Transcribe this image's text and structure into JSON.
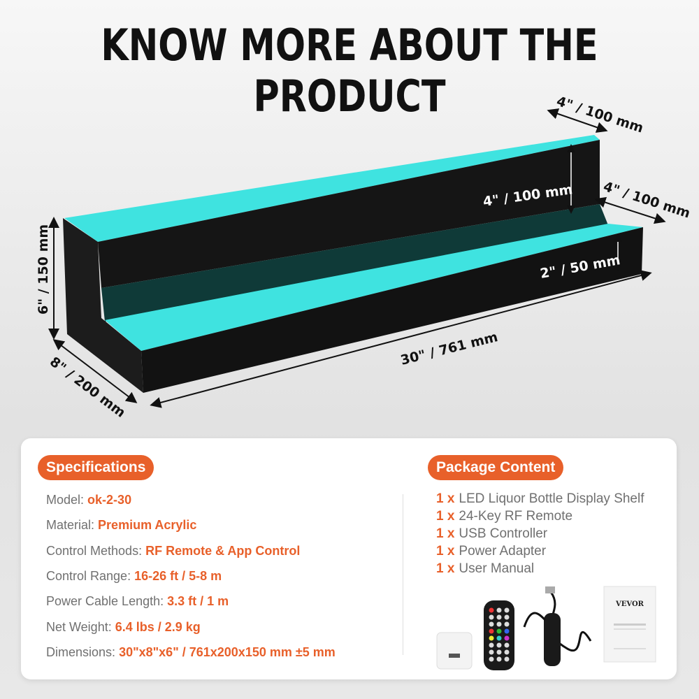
{
  "title": "KNOW MORE ABOUT THE PRODUCT",
  "dimensions": {
    "top_depth": "4\" / 100 mm",
    "lower_depth": "4\" / 100 mm",
    "step_height": "4\" / 100 mm",
    "front_height": "2\" / 50 mm",
    "height": "6\" / 150 mm",
    "depth": "8\" / 200 mm",
    "length": "30\" / 761 mm"
  },
  "colors": {
    "accent": "#e8602a",
    "led": "#3fe3e0",
    "body": "#111111"
  },
  "specifications": {
    "heading": "Specifications",
    "items": [
      {
        "label": "Model:",
        "value": "ok-2-30"
      },
      {
        "label": "Material:",
        "value": "Premium Acrylic"
      },
      {
        "label": "Control Methods:",
        "value": "RF Remote & App Control"
      },
      {
        "label": "Control Range:",
        "value": "16-26 ft / 5-8 m"
      },
      {
        "label": "Power Cable Length:",
        "value": "3.3 ft / 1 m"
      },
      {
        "label": "Net Weight:",
        "value": "6.4 lbs / 2.9 kg"
      },
      {
        "label": "Dimensions:",
        "value": "30\"x8\"x6\" / 761x200x150 mm ±5 mm"
      }
    ]
  },
  "package": {
    "heading": "Package Content",
    "items": [
      {
        "qty": "1 x",
        "name": "LED Liquor Bottle Display Shelf"
      },
      {
        "qty": "1 x",
        "name": "24-Key RF Remote"
      },
      {
        "qty": "1 x",
        "name": "USB Controller"
      },
      {
        "qty": "1 x",
        "name": "Power Adapter"
      },
      {
        "qty": "1 x",
        "name": "User Manual"
      }
    ],
    "manual_brand": "VEVOR"
  }
}
